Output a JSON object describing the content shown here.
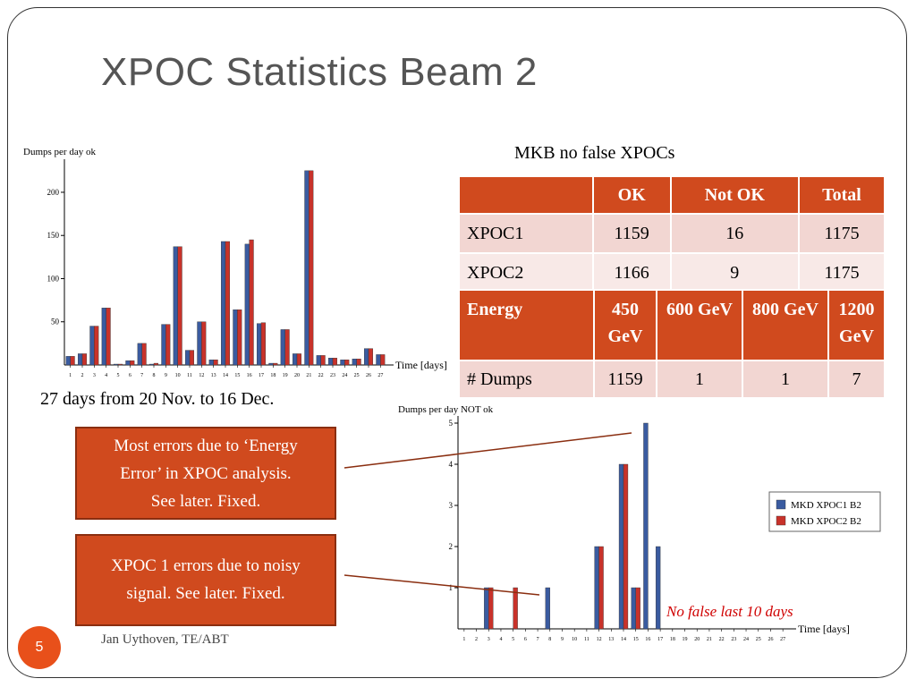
{
  "title": "XPOC Statistics Beam 2",
  "table_caption": "MKB no false XPOCs",
  "table1": {
    "headers": [
      "",
      "OK",
      "Not OK",
      "Total"
    ],
    "rows": [
      [
        "XPOC1",
        "1159",
        "16",
        "1175"
      ],
      [
        "XPOC2",
        "1166",
        "9",
        "1175"
      ]
    ]
  },
  "table2": {
    "headers": [
      "Energy",
      "450 GeV",
      "600 GeV",
      "800 GeV",
      "1200 GeV"
    ],
    "rows": [
      [
        "# Dumps",
        "1159",
        "1",
        "1",
        "7"
      ]
    ]
  },
  "period_text": "27 days from  20 Nov. to 16 Dec.",
  "box1_lines": [
    "Most errors due to ‘Energy",
    "Error’ in XPOC analysis.",
    "See later. Fixed."
  ],
  "box2_lines": [
    "XPOC 1 errors due to noisy",
    "signal. See later. Fixed."
  ],
  "note": "No false last 10 days",
  "slide_number": "5",
  "author": "Jan Uythoven, TE/ABT",
  "colors": {
    "series1": "#3a5ba0",
    "series2": "#c8322a",
    "accent": "#d04a1e"
  },
  "chart_data": [
    {
      "type": "bar",
      "ylabel": "Dumps per day ok",
      "xlabel": "Time [days]",
      "ylim": [
        0,
        230
      ],
      "yticks": [
        50,
        100,
        150,
        200
      ],
      "categories": [
        "1",
        "2",
        "3",
        "4",
        "5",
        "6",
        "7",
        "8",
        "9",
        "10",
        "11",
        "12",
        "13",
        "14",
        "15",
        "16",
        "17",
        "18",
        "19",
        "20",
        "21",
        "22",
        "23",
        "24",
        "25",
        "26",
        "27"
      ],
      "series": [
        {
          "values": [
            10,
            13,
            45,
            66,
            1,
            5,
            25,
            1,
            47,
            137,
            17,
            50,
            6,
            143,
            64,
            140,
            48,
            2,
            41,
            13,
            225,
            11,
            8,
            6,
            7,
            19,
            12
          ]
        },
        {
          "values": [
            10,
            13,
            45,
            66,
            1,
            5,
            25,
            2,
            47,
            137,
            17,
            50,
            6,
            143,
            64,
            145,
            49,
            2,
            41,
            13,
            225,
            11,
            8,
            6,
            7,
            19,
            12
          ]
        }
      ]
    },
    {
      "type": "bar",
      "ylabel": "Dumps per day NOT ok",
      "xlabel": "Time [days]",
      "ylim": [
        0,
        5
      ],
      "yticks": [
        1,
        2,
        3,
        4,
        5
      ],
      "categories": [
        "1",
        "2",
        "3",
        "4",
        "5",
        "6",
        "7",
        "8",
        "9",
        "10",
        "11",
        "12",
        "13",
        "14",
        "15",
        "16",
        "17",
        "18",
        "19",
        "20",
        "21",
        "22",
        "23",
        "24",
        "25",
        "26",
        "27"
      ],
      "legend_position": "right",
      "series": [
        {
          "name": "MKD XPOC1 B2",
          "values": [
            0,
            0,
            1,
            0,
            0,
            0,
            0,
            1,
            0,
            0,
            0,
            2,
            0,
            4,
            1,
            5,
            2,
            0,
            0,
            0,
            0,
            0,
            0,
            0,
            0,
            0,
            0
          ]
        },
        {
          "name": "MKD XPOC2 B2",
          "values": [
            0,
            0,
            1,
            0,
            1,
            0,
            0,
            0,
            0,
            0,
            0,
            2,
            0,
            4,
            1,
            0,
            0,
            0,
            0,
            0,
            0,
            0,
            0,
            0,
            0,
            0,
            0
          ]
        }
      ]
    }
  ]
}
